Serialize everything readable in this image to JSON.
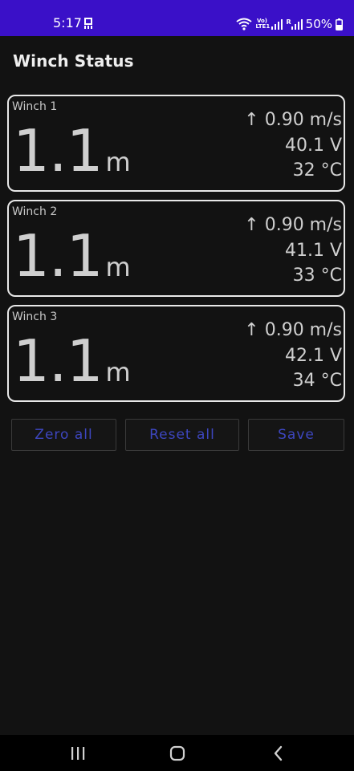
{
  "status_bar": {
    "time": "5:17",
    "volte_top": "Vo)",
    "volte_bottom": "LTE1",
    "sim_label": "R",
    "battery": "50%",
    "background": "#3a10c8",
    "icons": [
      "notification-app-icon",
      "wifi-icon",
      "volte-icon",
      "signal-icon",
      "signal-roaming-icon",
      "battery-icon"
    ]
  },
  "title": "Winch Status",
  "winches": [
    {
      "name": "Winch 1",
      "length": "1.1",
      "unit": "m",
      "speed": "↑ 0.90 m/s",
      "voltage": "40.1 V",
      "temperature": "32 °C"
    },
    {
      "name": "Winch 2",
      "length": "1.1",
      "unit": "m",
      "speed": "↑ 0.90 m/s",
      "voltage": "41.1 V",
      "temperature": "33 °C"
    },
    {
      "name": "Winch 3",
      "length": "1.1",
      "unit": "m",
      "speed": "↑ 0.90 m/s",
      "voltage": "42.1 V",
      "temperature": "34 °C"
    }
  ],
  "buttons": {
    "zero_all": "Zero all",
    "reset_all": "Reset all",
    "save": "Save",
    "accent": "#3d46c0"
  },
  "nav_bar": {
    "icons": [
      "recents-icon",
      "home-icon",
      "back-icon"
    ]
  }
}
